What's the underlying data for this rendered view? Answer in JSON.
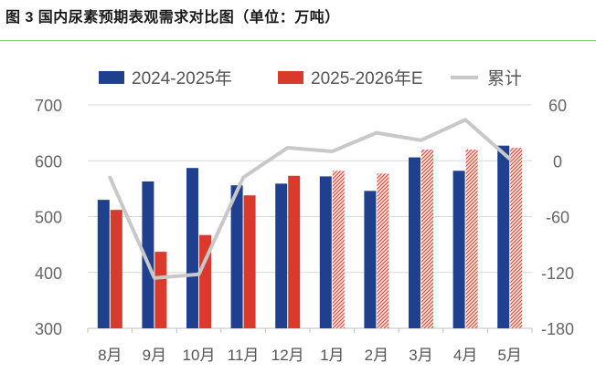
{
  "chart_data": {
    "type": "bar",
    "title": "图 3 国内尿素预期表观需求对比图（单位：万吨）",
    "categories": [
      "8月",
      "9月",
      "10月",
      "11月",
      "12月",
      "1月",
      "2月",
      "3月",
      "4月",
      "5月"
    ],
    "series": [
      {
        "name": "2024-2025年",
        "type": "bar",
        "axis": "left",
        "color": "#1f3f8f",
        "values": [
          530,
          563,
          587,
          556,
          559,
          572,
          546,
          606,
          582,
          627
        ]
      },
      {
        "name": "2025-2026年E",
        "type": "bar",
        "axis": "left",
        "color": "#d93a2b",
        "values": [
          512,
          437,
          467,
          538,
          573,
          582,
          577,
          620,
          620,
          623
        ],
        "estimated_from_index": 5
      },
      {
        "name": "累计",
        "type": "line",
        "axis": "right",
        "color": "#c8c8c8",
        "values": [
          -18,
          -126,
          -122,
          -18,
          14,
          10,
          30,
          22,
          44,
          2
        ]
      }
    ],
    "y_left": {
      "min": 300,
      "max": 700,
      "ticks": [
        300,
        400,
        500,
        600,
        700
      ]
    },
    "y_right": {
      "min": -180,
      "max": 60,
      "ticks": [
        -180,
        -120,
        -60,
        0,
        60
      ]
    },
    "legend": "top",
    "grid": "horizontal"
  }
}
